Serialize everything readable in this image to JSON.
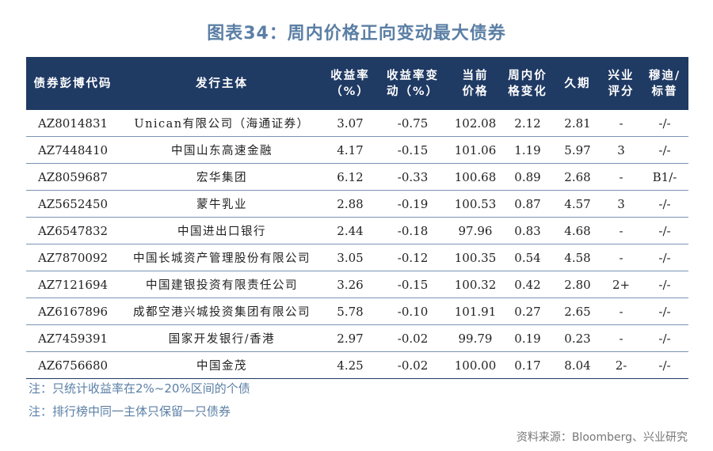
{
  "title": "图表34：周内价格正向变动最大债券",
  "table": {
    "headers": [
      {
        "line1": "债券彭博代码",
        "line2": ""
      },
      {
        "line1": "发行主体",
        "line2": ""
      },
      {
        "line1": "收益率",
        "line2": "（%）"
      },
      {
        "line1": "收益率变",
        "line2": "动（%）"
      },
      {
        "line1": "当前",
        "line2": "价格"
      },
      {
        "line1": "周内价",
        "line2": "格变化"
      },
      {
        "line1": "久期",
        "line2": ""
      },
      {
        "line1": "兴业",
        "line2": "评分"
      },
      {
        "line1": "穆迪/",
        "line2": "标普"
      }
    ],
    "rows": [
      {
        "code": "AZ8014831",
        "issuer": "Unican有限公司（海通证券）",
        "yield": "3.07",
        "yield_change": "-0.75",
        "price": "102.08",
        "price_change": "2.12",
        "duration": "2.81",
        "score": "-",
        "rating": "-/-"
      },
      {
        "code": "AZ7448410",
        "issuer": "中国山东高速金融",
        "yield": "4.17",
        "yield_change": "-0.15",
        "price": "101.06",
        "price_change": "1.19",
        "duration": "5.97",
        "score": "3",
        "rating": "-/-"
      },
      {
        "code": "AZ8059687",
        "issuer": "宏华集团",
        "yield": "6.12",
        "yield_change": "-0.33",
        "price": "100.68",
        "price_change": "0.89",
        "duration": "2.68",
        "score": "-",
        "rating": "B1/-"
      },
      {
        "code": "AZ5652450",
        "issuer": "蒙牛乳业",
        "yield": "2.88",
        "yield_change": "-0.19",
        "price": "100.53",
        "price_change": "0.87",
        "duration": "4.57",
        "score": "3",
        "rating": "-/-"
      },
      {
        "code": "AZ6547832",
        "issuer": "中国进出口银行",
        "yield": "2.44",
        "yield_change": "-0.18",
        "price": "97.96",
        "price_change": "0.83",
        "duration": "4.68",
        "score": "-",
        "rating": "-/-"
      },
      {
        "code": "AZ7870092",
        "issuer": "中国长城资产管理股份有限公司",
        "yield": "3.05",
        "yield_change": "-0.12",
        "price": "100.35",
        "price_change": "0.54",
        "duration": "4.58",
        "score": "-",
        "rating": "-/-"
      },
      {
        "code": "AZ7121694",
        "issuer": "中国建银投资有限责任公司",
        "yield": "3.26",
        "yield_change": "-0.15",
        "price": "100.32",
        "price_change": "0.42",
        "duration": "2.80",
        "score": "2+",
        "rating": "-/-"
      },
      {
        "code": "AZ6167896",
        "issuer": "成都空港兴城投资集团有限公司",
        "yield": "5.78",
        "yield_change": "-0.10",
        "price": "101.91",
        "price_change": "0.27",
        "duration": "2.65",
        "score": "-",
        "rating": "-/-"
      },
      {
        "code": "AZ7459391",
        "issuer": "国家开发银行/香港",
        "yield": "2.97",
        "yield_change": "-0.02",
        "price": "99.79",
        "price_change": "0.19",
        "duration": "0.23",
        "score": "-",
        "rating": "-/-"
      },
      {
        "code": "AZ6756680",
        "issuer": "中国金茂",
        "yield": "4.25",
        "yield_change": "-0.02",
        "price": "100.00",
        "price_change": "0.17",
        "duration": "8.04",
        "score": "2-",
        "rating": "-/-"
      }
    ]
  },
  "notes": [
    "注：只统计收益率在2%~20%区间的个债",
    "注：排行榜中同一主体只保留一只债券"
  ],
  "source": "资料来源：Bloomberg、兴业研究",
  "colors": {
    "header_bg": "#1f3a63",
    "title": "#5b7fa5",
    "rule": "#7a93b3"
  }
}
